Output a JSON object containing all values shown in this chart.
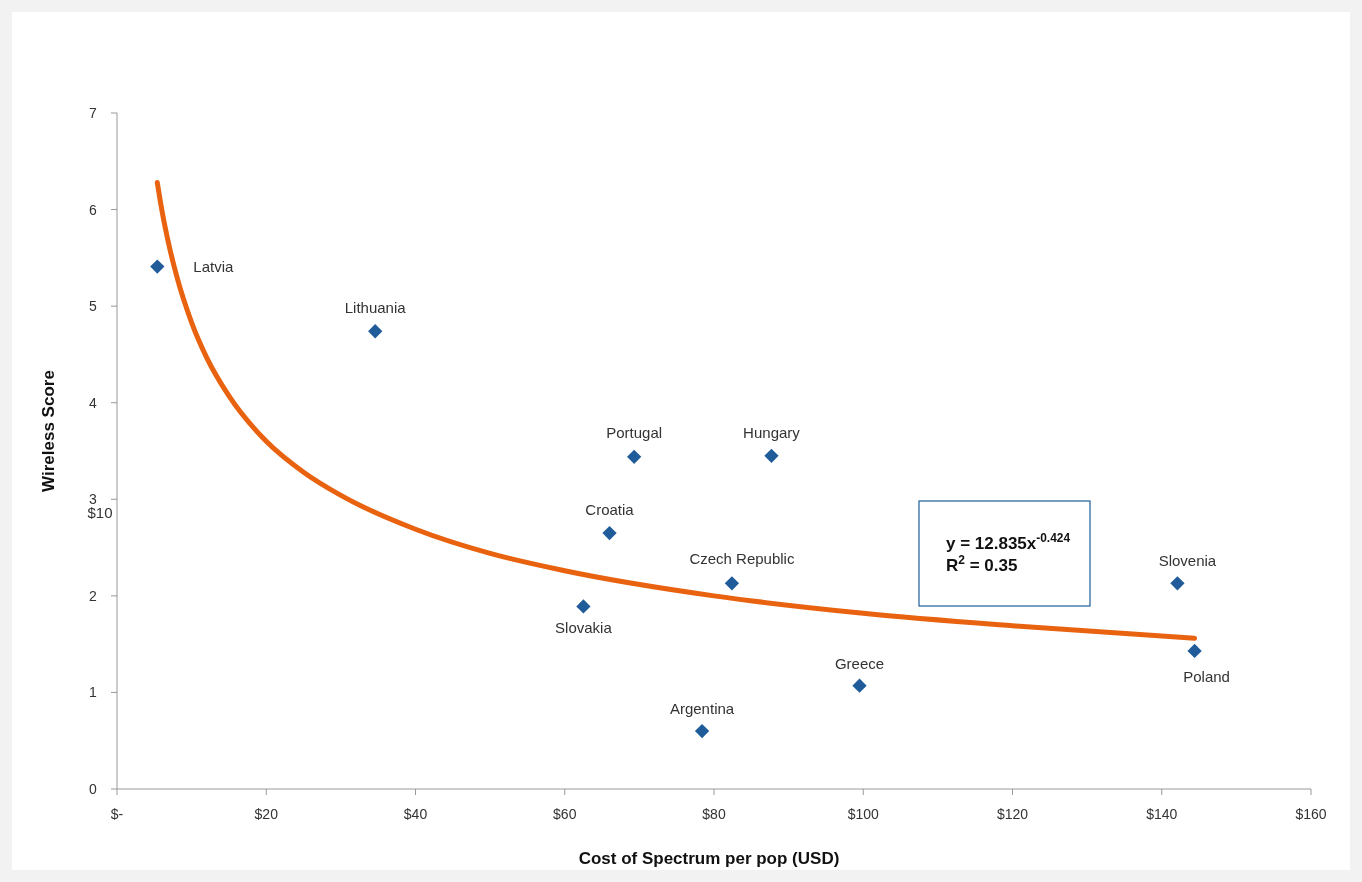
{
  "chart_data": {
    "type": "scatter",
    "xlabel": "Cost of Spectrum per pop (USD)",
    "ylabel": "Wireless Score",
    "xlim": [
      0,
      160
    ],
    "ylim": [
      0,
      7
    ],
    "xticks": [
      {
        "value": 0,
        "label": "$-"
      },
      {
        "value": 20,
        "label": "$20"
      },
      {
        "value": 40,
        "label": "$40"
      },
      {
        "value": 60,
        "label": "$60"
      },
      {
        "value": 80,
        "label": "$80"
      },
      {
        "value": 100,
        "label": "$100"
      },
      {
        "value": 120,
        "label": "$120"
      },
      {
        "value": 140,
        "label": "$140"
      },
      {
        "value": 160,
        "label": "$160"
      }
    ],
    "yticks": [
      0,
      1,
      2,
      3,
      4,
      5,
      6,
      7
    ],
    "grid": false,
    "series": [
      {
        "marker": "diamond",
        "color": "#1f5c99",
        "x": [
          5.4,
          34.6,
          69.3,
          87.7,
          66.0,
          82.4,
          62.5,
          78.4,
          99.5,
          142.1,
          144.4
        ],
        "values": [
          5.41,
          4.74,
          3.44,
          3.45,
          2.65,
          2.13,
          1.89,
          0.6,
          1.07,
          2.13,
          1.43
        ]
      },
      {
        "type": "line",
        "color": "#e8620f",
        "x": [
          5.4,
          6,
          7,
          8,
          10,
          12,
          15,
          20,
          25,
          30,
          40,
          50,
          60,
          80,
          100,
          120,
          144.4
        ],
        "values": [
          6.28,
          6.0,
          5.62,
          5.31,
          4.83,
          4.47,
          4.07,
          3.6,
          3.28,
          3.04,
          2.69,
          2.44,
          2.26,
          2.0,
          1.82,
          1.69,
          1.56
        ]
      }
    ],
    "annotations": [
      {
        "text": "Latvia",
        "x": 5.4,
        "y": 5.41
      },
      {
        "text": "Lithuania",
        "x": 34.6,
        "y": 4.74
      },
      {
        "text": "Portugal",
        "x": 69.3,
        "y": 3.44
      },
      {
        "text": "Hungary",
        "x": 87.7,
        "y": 3.45
      },
      {
        "text": "Croatia",
        "x": 66.0,
        "y": 2.65
      },
      {
        "text": "Czech Republic",
        "x": 82.4,
        "y": 2.13
      },
      {
        "text": "Slovakia",
        "x": 62.5,
        "y": 1.89
      },
      {
        "text": "Argentina",
        "x": 78.4,
        "y": 0.6
      },
      {
        "text": "Greece",
        "x": 99.5,
        "y": 1.07
      },
      {
        "text": "Slovenia",
        "x": 142.1,
        "y": 2.13
      },
      {
        "text": "Poland",
        "x": 144.4,
        "y": 1.43
      },
      "$10",
      "y = 12.835x$^{-0.424}$\nR$^{2}$ = 0.35"
    ]
  }
}
